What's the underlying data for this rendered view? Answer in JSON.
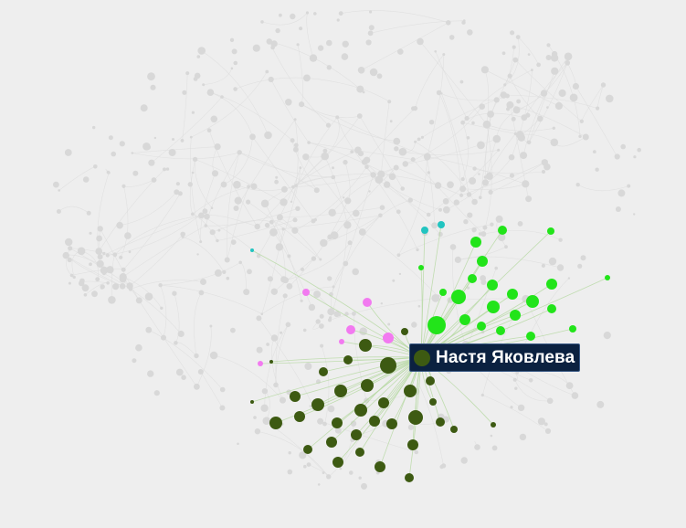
{
  "graph": {
    "colors": {
      "background": "#eeeeee",
      "inactive_node": "#d8d8d8",
      "inactive_edge": "#dcdcdc",
      "selected_node": "#3d5a12",
      "dark_green": "#3d5a12",
      "bright_green": "#22e41a",
      "pink": "#f27af0",
      "teal": "#22c4c0",
      "highlight_edge": "#b9d9a6"
    },
    "selected": {
      "name": "Настя Яковлева"
    }
  }
}
